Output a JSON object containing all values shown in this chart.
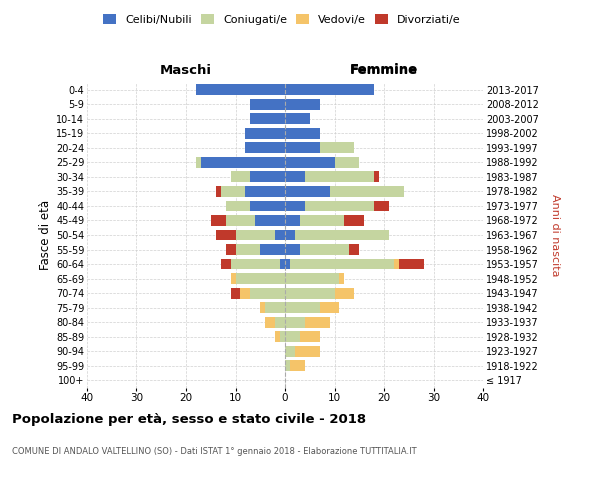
{
  "age_groups": [
    "100+",
    "95-99",
    "90-94",
    "85-89",
    "80-84",
    "75-79",
    "70-74",
    "65-69",
    "60-64",
    "55-59",
    "50-54",
    "45-49",
    "40-44",
    "35-39",
    "30-34",
    "25-29",
    "20-24",
    "15-19",
    "10-14",
    "5-9",
    "0-4"
  ],
  "birth_years": [
    "≤ 1917",
    "1918-1922",
    "1923-1927",
    "1928-1932",
    "1933-1937",
    "1938-1942",
    "1943-1947",
    "1948-1952",
    "1953-1957",
    "1958-1962",
    "1963-1967",
    "1968-1972",
    "1973-1977",
    "1978-1982",
    "1983-1987",
    "1988-1992",
    "1993-1997",
    "1998-2002",
    "2003-2007",
    "2008-2012",
    "2013-2017"
  ],
  "maschi": {
    "celibi": [
      0,
      0,
      0,
      0,
      0,
      0,
      0,
      0,
      1,
      5,
      2,
      6,
      7,
      8,
      7,
      17,
      8,
      8,
      7,
      7,
      18
    ],
    "coniugati": [
      0,
      0,
      0,
      1,
      2,
      4,
      7,
      10,
      10,
      5,
      8,
      6,
      5,
      5,
      4,
      1,
      0,
      0,
      0,
      0,
      0
    ],
    "vedovi": [
      0,
      0,
      0,
      1,
      2,
      1,
      2,
      1,
      0,
      0,
      0,
      0,
      0,
      0,
      0,
      0,
      0,
      0,
      0,
      0,
      0
    ],
    "divorziati": [
      0,
      0,
      0,
      0,
      0,
      0,
      2,
      0,
      2,
      2,
      4,
      3,
      0,
      1,
      0,
      0,
      0,
      0,
      0,
      0,
      0
    ]
  },
  "femmine": {
    "nubili": [
      0,
      0,
      0,
      0,
      0,
      0,
      0,
      0,
      1,
      3,
      2,
      3,
      4,
      9,
      4,
      10,
      7,
      7,
      5,
      7,
      18
    ],
    "coniugate": [
      0,
      1,
      2,
      3,
      4,
      7,
      10,
      11,
      21,
      10,
      19,
      9,
      14,
      15,
      14,
      5,
      7,
      0,
      0,
      0,
      0
    ],
    "vedove": [
      0,
      3,
      5,
      4,
      5,
      4,
      4,
      1,
      1,
      0,
      0,
      0,
      0,
      0,
      0,
      0,
      0,
      0,
      0,
      0,
      0
    ],
    "divorziate": [
      0,
      0,
      0,
      0,
      0,
      0,
      0,
      0,
      5,
      2,
      0,
      4,
      3,
      0,
      1,
      0,
      0,
      0,
      0,
      0,
      0
    ]
  },
  "colors": {
    "celibi_nubili": "#4472C4",
    "coniugati_e": "#C5D5A0",
    "vedovi_e": "#F5C469",
    "divorziati_e": "#C0392B"
  },
  "xlim": 40,
  "title": "Popolazione per età, sesso e stato civile - 2018",
  "subtitle": "COMUNE DI ANDALO VALTELLINO (SO) - Dati ISTAT 1° gennaio 2018 - Elaborazione TUTTITALIA.IT",
  "ylabel_left": "Fasce di età",
  "ylabel_right": "Anni di nascita",
  "label_maschi": "Maschi",
  "label_femmine": "Femmine",
  "legend_labels": [
    "Celibi/Nubili",
    "Coniugati/e",
    "Vedovi/e",
    "Divorziati/e"
  ],
  "background_color": "#ffffff",
  "grid_color": "#cccccc"
}
